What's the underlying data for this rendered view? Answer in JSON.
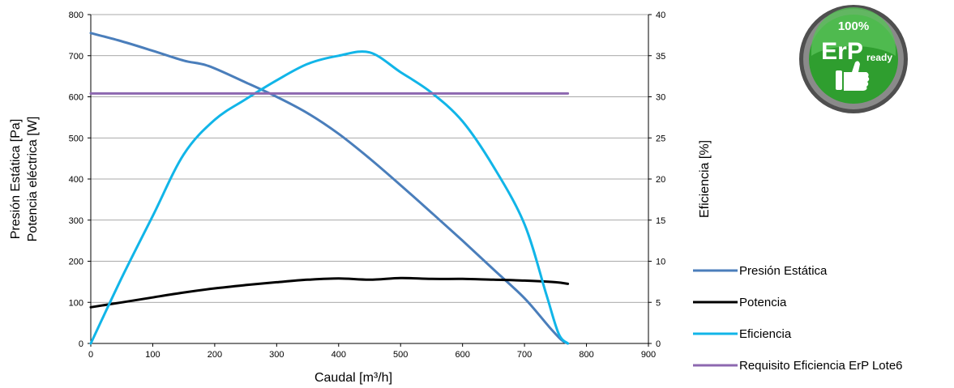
{
  "chart_data": {
    "type": "line",
    "xlabel": "Caudal [m³/h]",
    "ylabel_left": [
      "Presión Estática [Pa]",
      "Potencia eléctrica [W]"
    ],
    "ylabel_right": "Eficiencia [%]",
    "xlim": [
      0,
      900
    ],
    "ylim_left": [
      0,
      800
    ],
    "ylim_right": [
      0,
      40
    ],
    "x_ticks": [
      "0",
      "100",
      "200",
      "300",
      "400",
      "500",
      "600",
      "700",
      "800",
      "900"
    ],
    "y_left_ticks": [
      "0",
      "100",
      "200",
      "300",
      "400",
      "500",
      "600",
      "700",
      "800"
    ],
    "y_right_ticks": [
      "0",
      "5",
      "10",
      "15",
      "20",
      "25",
      "30",
      "35",
      "40"
    ],
    "grid": "horizontal",
    "legend_position": "bottom-right",
    "series": [
      {
        "name": "Presión Estática",
        "axis": "left",
        "color": "#4a7ebb",
        "points": [
          [
            0,
            755
          ],
          [
            50,
            735
          ],
          [
            100,
            712
          ],
          [
            150,
            688
          ],
          [
            190,
            675
          ],
          [
            250,
            635
          ],
          [
            300,
            600
          ],
          [
            350,
            560
          ],
          [
            400,
            510
          ],
          [
            450,
            450
          ],
          [
            500,
            385
          ],
          [
            550,
            318
          ],
          [
            600,
            250
          ],
          [
            650,
            180
          ],
          [
            700,
            110
          ],
          [
            740,
            40
          ],
          [
            760,
            8
          ],
          [
            770,
            0
          ]
        ]
      },
      {
        "name": "Potencia",
        "axis": "left",
        "color": "#000000",
        "points": [
          [
            0,
            88
          ],
          [
            50,
            100
          ],
          [
            100,
            112
          ],
          [
            150,
            124
          ],
          [
            200,
            134
          ],
          [
            250,
            142
          ],
          [
            300,
            149
          ],
          [
            350,
            155
          ],
          [
            400,
            158
          ],
          [
            450,
            155
          ],
          [
            500,
            159
          ],
          [
            550,
            157
          ],
          [
            600,
            157
          ],
          [
            650,
            155
          ],
          [
            700,
            153
          ],
          [
            750,
            149
          ],
          [
            770,
            145
          ]
        ]
      },
      {
        "name": "Eficiencia",
        "axis": "right",
        "color": "#11b5e8",
        "points": [
          [
            0,
            0
          ],
          [
            50,
            8
          ],
          [
            100,
            15.5
          ],
          [
            150,
            23
          ],
          [
            200,
            27.2
          ],
          [
            250,
            29.7
          ],
          [
            300,
            32
          ],
          [
            350,
            34
          ],
          [
            400,
            35
          ],
          [
            450,
            35.4
          ],
          [
            500,
            33
          ],
          [
            550,
            30.5
          ],
          [
            600,
            27
          ],
          [
            650,
            21.5
          ],
          [
            700,
            14.5
          ],
          [
            735,
            6
          ],
          [
            755,
            1.2
          ],
          [
            770,
            0
          ]
        ]
      },
      {
        "name": "Requisito Eficiencia ErP Lote6",
        "axis": "right",
        "color": "#8d68b0",
        "points": [
          [
            0,
            30.4
          ],
          [
            770,
            30.4
          ]
        ]
      }
    ]
  },
  "badge": {
    "percent": "100%",
    "brand": "ErP",
    "ready": "ready"
  },
  "colors": {
    "axis": "#000000",
    "grid": "#8c8c8c",
    "badge_green": "#2f9e2f",
    "badge_ring": "#5a5a5a"
  }
}
